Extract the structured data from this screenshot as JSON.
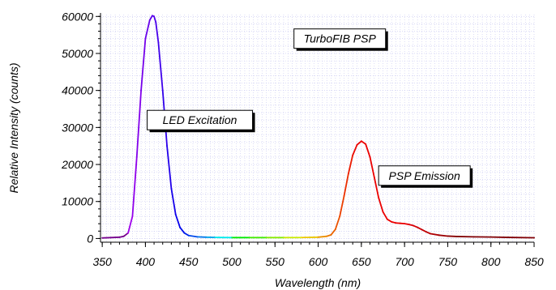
{
  "chart_data": {
    "type": "line",
    "title": "",
    "xlabel": "Wavelength (nm)",
    "ylabel": "Relative Intensity (counts)",
    "xlim": [
      348,
      850
    ],
    "ylim": [
      -1000,
      60500
    ],
    "x_ticks": [
      350,
      400,
      450,
      500,
      550,
      600,
      650,
      700,
      750,
      800,
      850
    ],
    "y_ticks": [
      0,
      10000,
      20000,
      30000,
      40000,
      50000,
      60000
    ],
    "x_tick_labels": [
      "350",
      "400",
      "450",
      "500",
      "550",
      "600",
      "650",
      "700",
      "750",
      "800",
      "850"
    ],
    "y_tick_labels": [
      "0",
      "10000",
      "20000",
      "30000",
      "40000",
      "50000",
      "60000"
    ],
    "grid": true,
    "legend": "none",
    "line_color": "spectral (wavelength-mapped rainbow)",
    "series": [
      {
        "x": [
          350,
          360,
          370,
          375,
          380,
          385,
          390,
          395,
          400,
          405,
          408,
          410,
          412,
          415,
          420,
          425,
          430,
          435,
          440,
          445,
          450,
          460,
          470,
          480,
          500,
          520,
          540,
          560,
          580,
          600,
          610,
          615,
          620,
          625,
          630,
          635,
          640,
          645,
          650,
          655,
          660,
          665,
          670,
          675,
          680,
          685,
          690,
          695,
          700,
          705,
          710,
          715,
          720,
          725,
          730,
          740,
          750,
          760,
          780,
          800,
          820,
          850
        ],
        "y": [
          150,
          250,
          350,
          600,
          1500,
          6000,
          22000,
          40000,
          54000,
          59000,
          60200,
          60000,
          58500,
          53000,
          40000,
          25000,
          13500,
          6500,
          3000,
          1500,
          800,
          450,
          350,
          300,
          250,
          250,
          250,
          250,
          260,
          350,
          600,
          1000,
          2500,
          6000,
          11500,
          17500,
          22500,
          25300,
          26300,
          25500,
          22000,
          16500,
          11000,
          7200,
          5200,
          4500,
          4200,
          4100,
          4000,
          3800,
          3500,
          3000,
          2400,
          1800,
          1300,
          900,
          650,
          550,
          450,
          400,
          300,
          200
        ]
      }
    ],
    "annotations": [
      {
        "text": "TurboFIB PSP",
        "x": 625,
        "y": 54000
      },
      {
        "text": "LED Excitation",
        "x": 463,
        "y": 32000
      },
      {
        "text": "PSP Emission",
        "x": 723,
        "y": 17000
      }
    ]
  }
}
